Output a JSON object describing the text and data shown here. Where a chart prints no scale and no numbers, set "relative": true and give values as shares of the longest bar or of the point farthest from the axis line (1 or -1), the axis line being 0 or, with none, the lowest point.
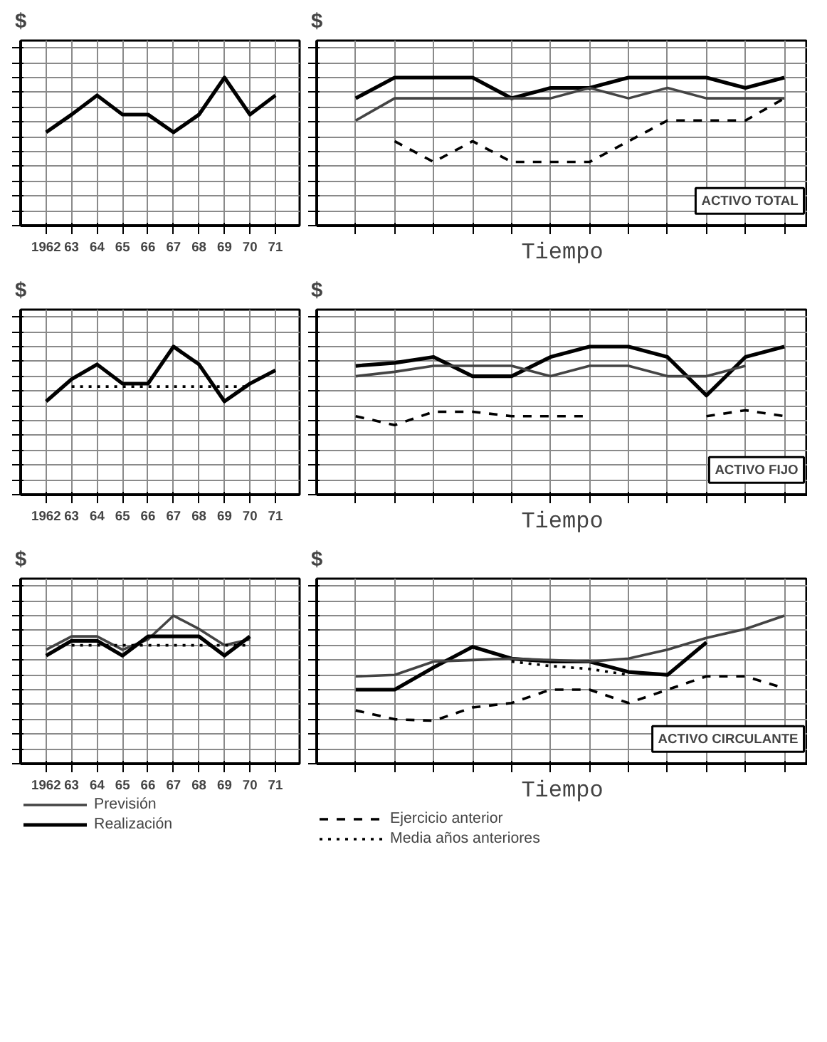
{
  "chart_data": [
    {
      "type": "line",
      "ylabel": "$",
      "relative": true,
      "grid": true,
      "categories": [
        "1962",
        "63",
        "64",
        "65",
        "66",
        "67",
        "68",
        "69",
        "70",
        "71"
      ],
      "series": [
        {
          "color": "#000000",
          "line_style": "solid",
          "values": [
            0.63,
            0.75,
            0.88,
            0.75,
            0.75,
            0.63,
            0.75,
            1,
            0.75,
            0.88
          ]
        }
      ]
    },
    {
      "type": "line",
      "ylabel": "$",
      "xlabel": "Tiempo",
      "relative": true,
      "grid": true,
      "annotations": [
        "ACTIVO TOTAL"
      ],
      "categories": [
        null,
        null,
        null,
        null,
        null,
        null,
        null,
        null,
        null,
        null,
        null,
        null
      ],
      "series": [
        {
          "color": "#000000",
          "line_style": "solid",
          "values": [
            0.86,
            1,
            1,
            1,
            0.86,
            0.93,
            0.93,
            1,
            1,
            1,
            0.93,
            1
          ]
        },
        {
          "color": "#444444",
          "line_style": "solid",
          "values": [
            0.71,
            0.86,
            0.86,
            0.86,
            0.86,
            0.86,
            0.93,
            0.86,
            0.93,
            0.86,
            0.86,
            0.86
          ]
        },
        {
          "color": "#000000",
          "line_style": "dashed",
          "values": [
            null,
            0.57,
            0.43,
            0.57,
            0.43,
            0.43,
            0.43,
            0.57,
            0.71,
            0.71,
            0.71,
            0.86
          ]
        }
      ]
    },
    {
      "type": "line",
      "ylabel": "$",
      "relative": true,
      "grid": true,
      "categories": [
        "1962",
        "63",
        "64",
        "65",
        "66",
        "67",
        "68",
        "69",
        "70",
        "71"
      ],
      "series": [
        {
          "color": "#000000",
          "line_style": "solid",
          "values": [
            0.63,
            0.78,
            0.88,
            0.75,
            0.75,
            1,
            0.88,
            0.63,
            0.75,
            0.84
          ]
        },
        {
          "color": "#000000",
          "line_style": "dotted",
          "values": [
            null,
            0.73,
            0.73,
            0.73,
            0.73,
            0.73,
            0.73,
            0.73,
            0.73,
            null
          ]
        }
      ]
    },
    {
      "type": "line",
      "ylabel": "$",
      "xlabel": "Tiempo",
      "relative": true,
      "grid": true,
      "annotations": [
        "ACTIVO FIJO"
      ],
      "categories": [
        null,
        null,
        null,
        null,
        null,
        null,
        null,
        null,
        null,
        null,
        null,
        null
      ],
      "series": [
        {
          "color": "#000000",
          "line_style": "solid",
          "values": [
            0.87,
            0.89,
            0.93,
            0.8,
            0.8,
            0.93,
            1,
            1,
            0.93,
            0.67,
            0.93,
            1
          ]
        },
        {
          "color": "#444444",
          "line_style": "solid",
          "values": [
            0.8,
            0.83,
            0.87,
            0.87,
            0.87,
            0.8,
            0.87,
            0.87,
            0.8,
            0.8,
            0.87,
            null
          ]
        },
        {
          "color": "#000000",
          "line_style": "dashed",
          "values": [
            0.53,
            0.47,
            0.56,
            0.56,
            0.53,
            0.53,
            0.53,
            null,
            null,
            0.53,
            0.57,
            0.53
          ]
        }
      ]
    },
    {
      "type": "line",
      "ylabel": "$",
      "relative": true,
      "grid": true,
      "legend": "bottom",
      "categories": [
        "1962",
        "63",
        "64",
        "65",
        "66",
        "67",
        "68",
        "69",
        "70",
        "71"
      ],
      "series": [
        {
          "name": "Previsión",
          "color": "#444444",
          "line_style": "solid",
          "values": [
            0.77,
            0.86,
            0.86,
            0.77,
            0.84,
            1,
            0.91,
            0.8,
            0.84,
            null
          ]
        },
        {
          "name": "Realización",
          "color": "#000000",
          "line_style": "solid",
          "values": [
            0.73,
            0.83,
            0.83,
            0.73,
            0.86,
            0.86,
            0.86,
            0.73,
            0.86,
            null
          ]
        },
        {
          "color": "#000000",
          "line_style": "dotted",
          "values": [
            null,
            0.8,
            0.8,
            0.8,
            0.8,
            0.8,
            0.8,
            0.8,
            0.8,
            null
          ]
        }
      ]
    },
    {
      "type": "line",
      "ylabel": "$",
      "xlabel": "Tiempo",
      "relative": true,
      "grid": true,
      "legend": "bottom",
      "annotations": [
        "ACTIVO CIRCULANTE"
      ],
      "categories": [
        null,
        null,
        null,
        null,
        null,
        null,
        null,
        null,
        null,
        null,
        null,
        null
      ],
      "series": [
        {
          "color": "#000000",
          "line_style": "solid",
          "values": [
            0.5,
            0.5,
            0.65,
            0.79,
            0.71,
            0.69,
            0.69,
            0.62,
            0.6,
            0.82,
            null,
            null
          ]
        },
        {
          "color": "#444444",
          "line_style": "solid",
          "values": [
            0.59,
            0.6,
            0.69,
            0.7,
            0.71,
            0.7,
            0.69,
            0.71,
            0.77,
            0.85,
            0.91,
            1
          ]
        },
        {
          "name": "Ejercicio anterior",
          "color": "#000000",
          "line_style": "dashed",
          "values": [
            0.36,
            0.3,
            0.29,
            0.38,
            0.41,
            0.5,
            0.5,
            0.41,
            0.5,
            0.59,
            0.59,
            0.51
          ]
        },
        {
          "name": "Media años anteriores",
          "color": "#000000",
          "line_style": "dotted",
          "values": [
            null,
            null,
            null,
            null,
            0.69,
            0.66,
            0.64,
            0.6,
            null,
            null,
            null,
            null
          ]
        }
      ]
    }
  ]
}
